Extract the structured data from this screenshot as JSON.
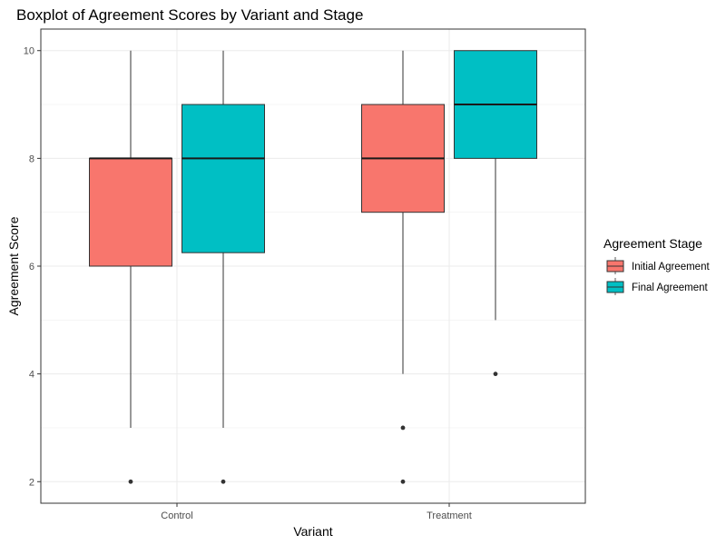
{
  "chart_data": {
    "type": "boxplot",
    "title": "Boxplot of Agreement Scores by Variant and Stage",
    "xlabel": "Variant",
    "ylabel": "Agreement Score",
    "categories": [
      "Control",
      "Treatment"
    ],
    "ylim": [
      1.6,
      10.4
    ],
    "yticks": [
      2,
      4,
      6,
      8,
      10
    ],
    "grid": true,
    "legend": {
      "title": "Agreement Stage",
      "placement": "right"
    },
    "series": [
      {
        "name": "Initial Agreement",
        "color": "#F8766D",
        "boxes": [
          {
            "category": "Control",
            "whisker_low": 3,
            "q1": 6,
            "median": 8,
            "q3": 8,
            "whisker_high": 10,
            "outliers": [
              2
            ]
          },
          {
            "category": "Treatment",
            "whisker_low": 4,
            "q1": 7,
            "median": 8,
            "q3": 9,
            "whisker_high": 10,
            "outliers": [
              3,
              2
            ]
          }
        ]
      },
      {
        "name": "Final Agreement",
        "color": "#00BFC4",
        "boxes": [
          {
            "category": "Control",
            "whisker_low": 3,
            "q1": 6.25,
            "median": 8,
            "q3": 9,
            "whisker_high": 10,
            "outliers": [
              2
            ]
          },
          {
            "category": "Treatment",
            "whisker_low": 5,
            "q1": 8,
            "median": 9,
            "q3": 10,
            "whisker_high": 10,
            "outliers": [
              4
            ]
          }
        ]
      }
    ]
  }
}
